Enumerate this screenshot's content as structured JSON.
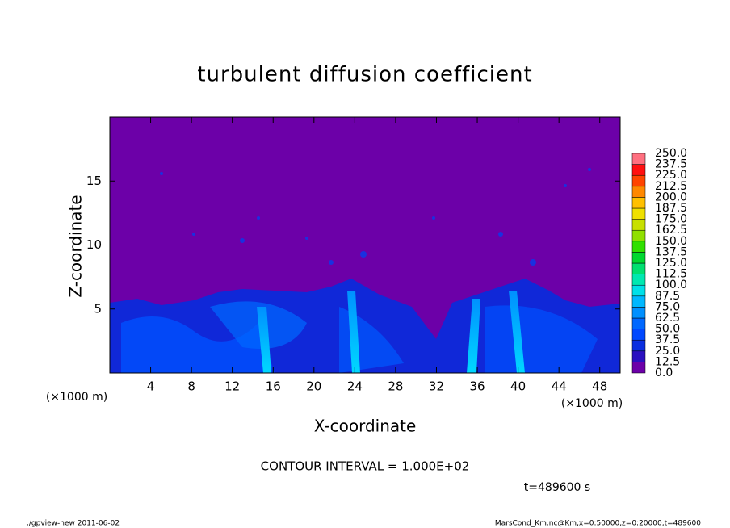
{
  "chart_data": {
    "type": "contour",
    "title": "turbulent diffusion coefficient",
    "x_label": "X-coordinate",
    "y_label": "Z-coordinate",
    "x_unit": "(×1000 m)",
    "y_unit": "(×1000 m)",
    "xlim": [
      0,
      50
    ],
    "xticks": [
      4,
      8,
      12,
      16,
      20,
      24,
      28,
      32,
      36,
      40,
      44,
      48
    ],
    "ylim": [
      0,
      20
    ],
    "yticks": [
      5,
      10,
      15
    ],
    "colorbar": {
      "levels": [
        {
          "value": 0,
          "label": "0.0"
        },
        {
          "value": 12.5,
          "label": "12.5"
        },
        {
          "value": 25,
          "label": "25.0"
        },
        {
          "value": 37.5,
          "label": "37.5"
        },
        {
          "value": 50,
          "label": "50.0"
        },
        {
          "value": 62.5,
          "label": "62.5"
        },
        {
          "value": 75,
          "label": "75.0"
        },
        {
          "value": 87.5,
          "label": "87.5"
        },
        {
          "value": 100,
          "label": "100.0"
        },
        {
          "value": 112.5,
          "label": "112.5"
        },
        {
          "value": 125,
          "label": "125.0"
        },
        {
          "value": 137.5,
          "label": "137.5"
        },
        {
          "value": 150,
          "label": "150.0"
        },
        {
          "value": 162.5,
          "label": "162.5"
        },
        {
          "value": 175,
          "label": "175.0"
        },
        {
          "value": 187.5,
          "label": "187.5"
        },
        {
          "value": 200,
          "label": "200.0"
        },
        {
          "value": 212.5,
          "label": "212.5"
        },
        {
          "value": 225,
          "label": "225.0"
        },
        {
          "value": 237.5,
          "label": "237.5"
        },
        {
          "value": 250,
          "label": "250.0"
        }
      ],
      "colors": [
        "#6c00a8",
        "#2a10c0",
        "#0a2ee0",
        "#0048ff",
        "#0068ff",
        "#0090ff",
        "#00b8ff",
        "#00e0e8",
        "#00e8b0",
        "#00e070",
        "#00d830",
        "#30e000",
        "#90e000",
        "#c8e000",
        "#f0e000",
        "#ffc000",
        "#ff8800",
        "#ff4400",
        "#ff1010",
        "#ff7080"
      ]
    },
    "contour_interval": "CONTOUR INTERVAL = 1.000E+02",
    "time_label": "t=489600 s",
    "footer_left": "./gpview-new   2011-06-02",
    "footer_right": "MarsCond_Km.nc@Km,x=0:50000,z=0:20000,t=489600"
  }
}
